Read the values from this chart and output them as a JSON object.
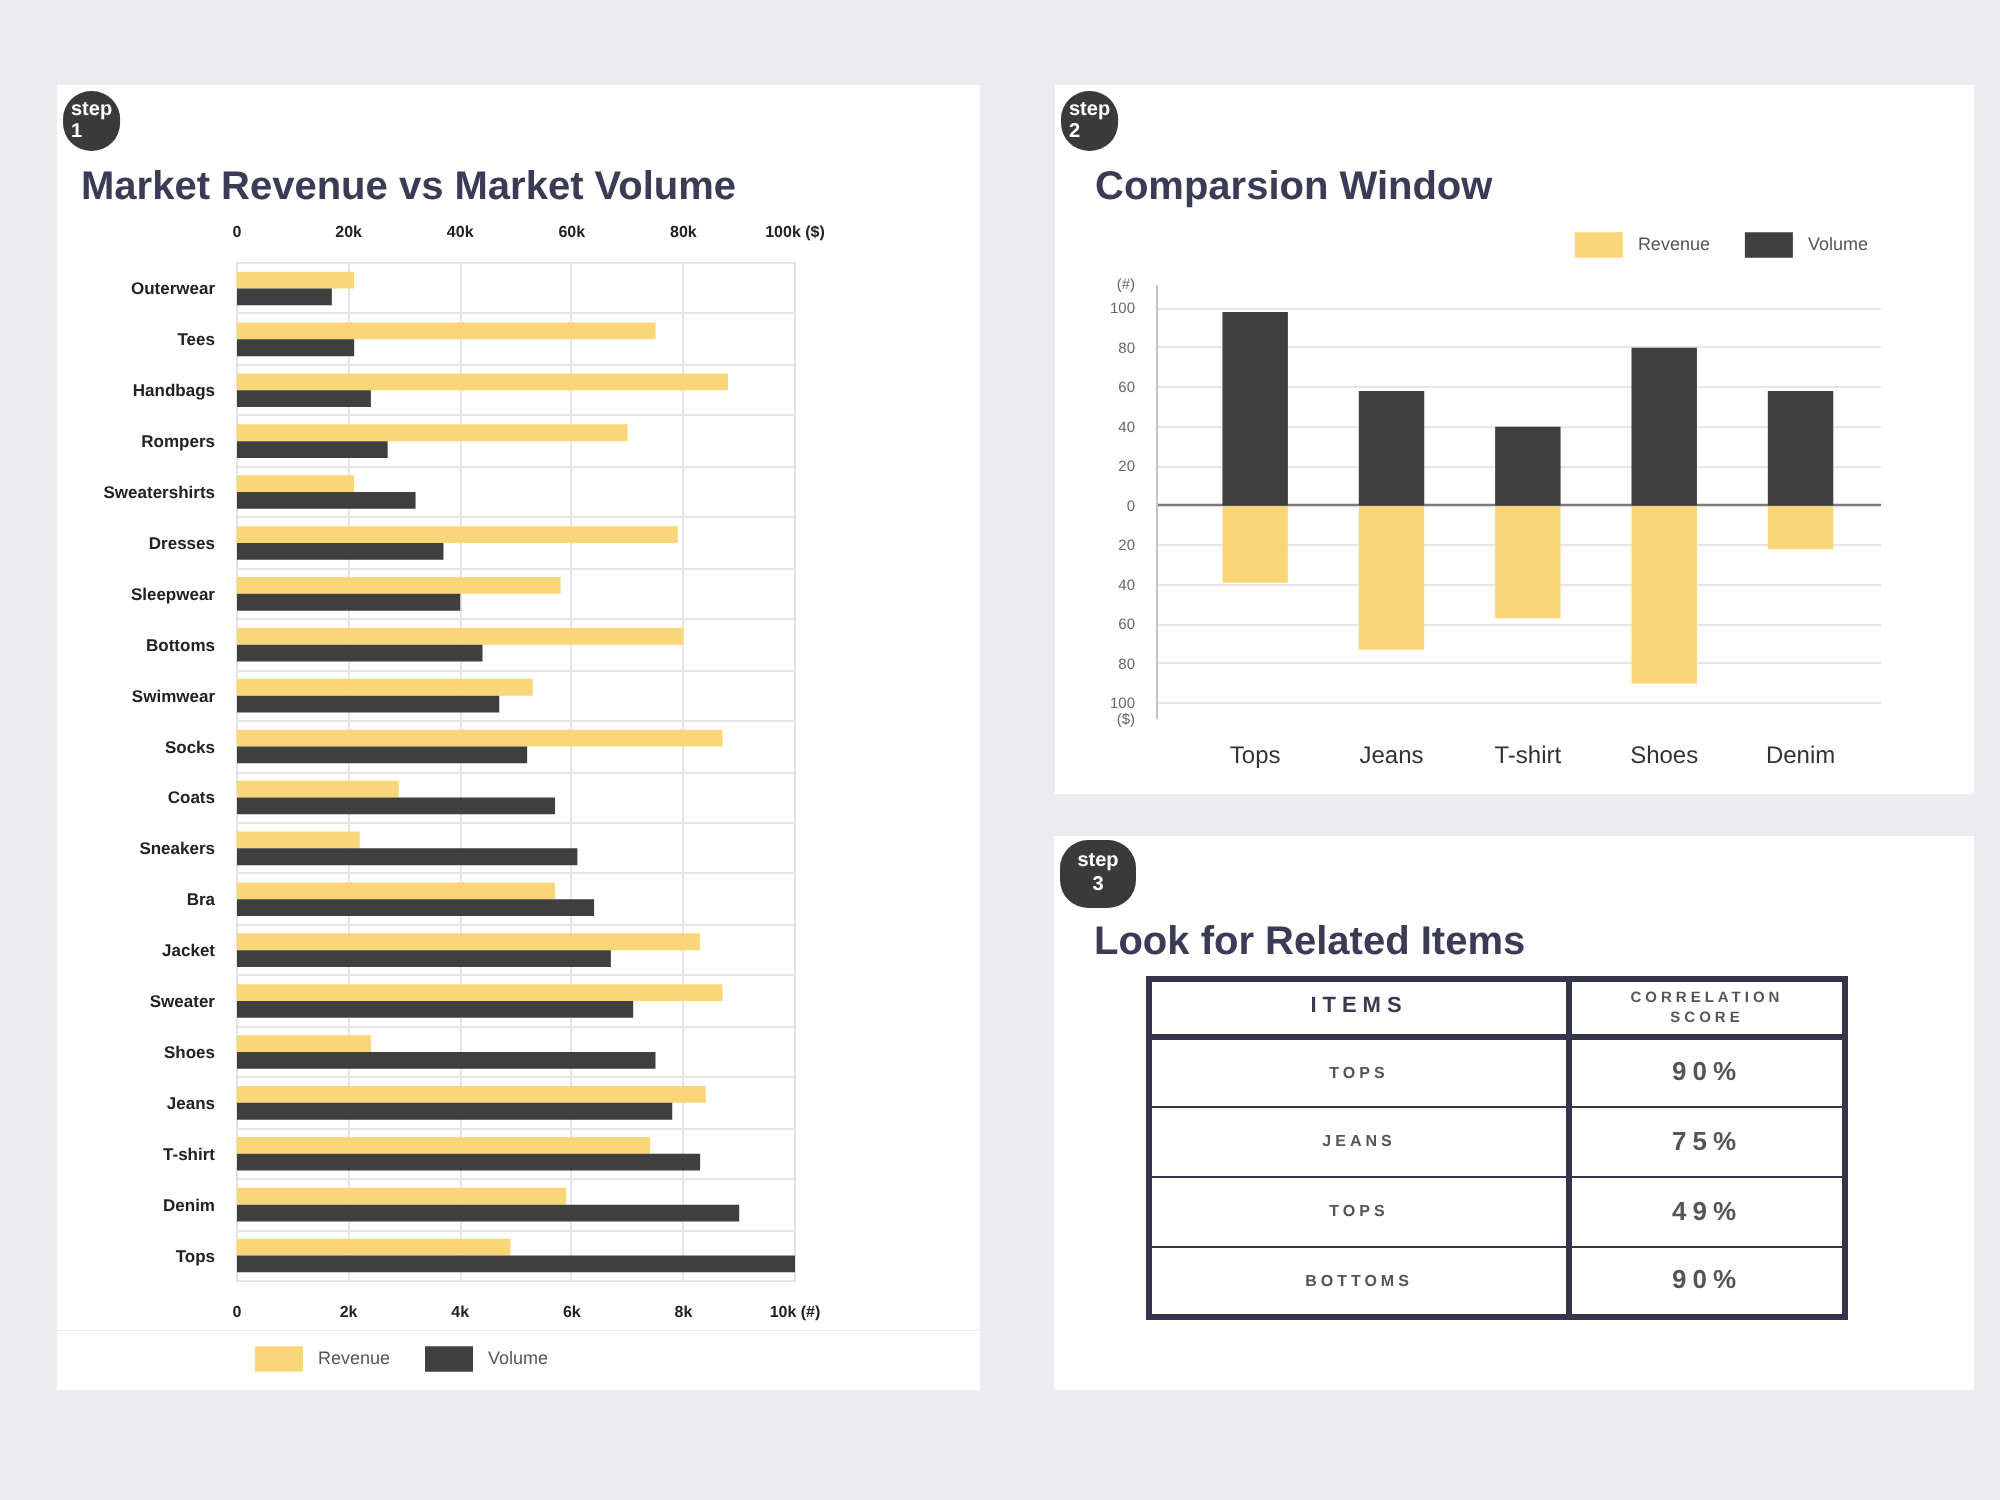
{
  "chart_data": [
    {
      "type": "bar",
      "orientation": "horizontal",
      "title": "Market Revenue vs Market Volume",
      "categories": [
        "Outerwear",
        "Tees",
        "Handbags",
        "Rompers",
        "Sweatershirts",
        "Dresses",
        "Sleepwear",
        "Bottoms",
        "Swimwear",
        "Socks",
        "Coats",
        "Sneakers",
        "Bra",
        "Jacket",
        "Sweater",
        "Shoes",
        "Jeans",
        "T-shirt",
        "Denim",
        "Tops"
      ],
      "series": [
        {
          "name": "Revenue",
          "color": "#fbd679",
          "axis": "x2",
          "values": [
            21000,
            75000,
            88000,
            70000,
            21000,
            79000,
            58000,
            80000,
            53000,
            87000,
            29000,
            22000,
            57000,
            83000,
            87000,
            24000,
            84000,
            74000,
            59000,
            49000
          ]
        },
        {
          "name": "Volume",
          "color": "#3f3f3f",
          "values": [
            1700,
            2100,
            2400,
            2700,
            3200,
            3700,
            4000,
            4400,
            4700,
            5200,
            5700,
            6100,
            6400,
            6700,
            7100,
            7500,
            7800,
            8300,
            9000,
            10000
          ]
        }
      ],
      "xlim": [
        0,
        10000
      ],
      "xticks": [
        0,
        {
          "value": 2000,
          "label": "2k"
        },
        {
          "value": 4000,
          "label": "4k"
        },
        {
          "value": 6000,
          "label": "6k"
        },
        {
          "value": 8000,
          "label": "8k"
        },
        {
          "value": 10000,
          "label": "10k (#)"
        }
      ],
      "x2lim": [
        0,
        100000
      ],
      "x2ticks": [
        0,
        {
          "value": 20000,
          "label": "20k"
        },
        {
          "value": 40000,
          "label": "40k"
        },
        {
          "value": 60000,
          "label": "60k"
        },
        {
          "value": 80000,
          "label": "80k"
        },
        {
          "value": 100000,
          "label": "100k ($)"
        }
      ],
      "grid": true,
      "legend": "bottom left",
      "annotations": [
        "step 1"
      ]
    },
    {
      "type": "bar",
      "title": "Comparsion Window",
      "categories": [
        "Tops",
        "Jeans",
        "T-shirt",
        "Shoes",
        "Denim"
      ],
      "stacked": true,
      "series": [
        {
          "name": "Revenue",
          "color": "#fbd679",
          "values": [
            -39,
            -73,
            -57,
            -90,
            -22
          ]
        },
        {
          "name": "Volume",
          "color": "#3f3f3f",
          "values": [
            98,
            58,
            40,
            80,
            58
          ]
        }
      ],
      "ylim": [
        -108,
        112
      ],
      "yticks": [
        {
          "value": -108,
          "label": "($)"
        },
        {
          "value": -100,
          "label": "100"
        },
        {
          "value": -80,
          "label": "80"
        },
        {
          "value": -60,
          "label": "60"
        },
        {
          "value": -40,
          "label": "40"
        },
        {
          "value": -20,
          "label": "20"
        },
        0,
        20,
        40,
        60,
        80,
        100,
        {
          "value": 112,
          "label": "(#)"
        }
      ],
      "grid": "y",
      "legend": "top right",
      "annotations": [
        "step 2"
      ]
    },
    {
      "type": "other",
      "title": "Look for Related Items",
      "xlabel": "ITEMS",
      "ylabel": "CORRELATION SCORE",
      "categories": [
        "TOPS",
        "JEANS",
        "TOPS",
        "BOTTOMS"
      ],
      "value_labels": [
        "90%",
        "75%",
        "49%",
        "90%"
      ],
      "annotations": [
        "step 3"
      ]
    }
  ]
}
